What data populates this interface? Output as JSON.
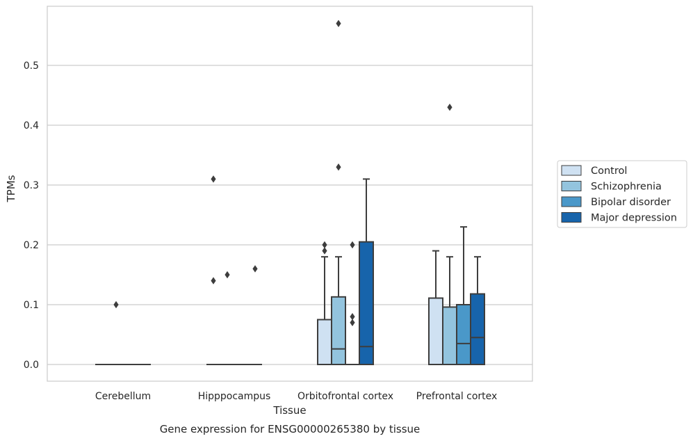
{
  "chart_data": {
    "type": "box",
    "xlabel": "Tissue",
    "ylabel": "TPMs",
    "caption": "Gene expression for ENSG00000265380 by tissue",
    "ylim": [
      -0.028,
      0.6
    ],
    "yticks": [
      "0.0",
      "0.1",
      "0.2",
      "0.3",
      "0.4",
      "0.5"
    ],
    "yticks_values": [
      0.0,
      0.1,
      0.2,
      0.3,
      0.4,
      0.5
    ],
    "grid": "horizontal",
    "legend_position": "right",
    "categories": [
      "Cerebellum",
      "Hipppocampus",
      "Orbitofrontal cortex",
      "Prefrontal cortex"
    ],
    "series": [
      {
        "name": "Control",
        "color": "#cfe1f2",
        "boxes": [
          {
            "q1": 0,
            "median": 0,
            "q3": 0,
            "whisker_low": 0,
            "whisker_high": 0,
            "outliers": []
          },
          {
            "q1": 0,
            "median": 0,
            "q3": 0,
            "whisker_low": 0,
            "whisker_high": 0,
            "outliers": [
              0.31,
              0.14
            ]
          },
          {
            "q1": 0,
            "median": 0,
            "q3": 0.075,
            "whisker_low": 0,
            "whisker_high": 0.18,
            "outliers": [
              0.2,
              0.19
            ]
          },
          {
            "q1": 0,
            "median": 0,
            "q3": 0.111,
            "whisker_low": 0,
            "whisker_high": 0.19,
            "outliers": []
          }
        ]
      },
      {
        "name": "Schizophrenia",
        "color": "#93c4de",
        "boxes": [
          {
            "q1": 0,
            "median": 0,
            "q3": 0,
            "whisker_low": 0,
            "whisker_high": 0,
            "outliers": [
              0.1
            ]
          },
          {
            "q1": 0,
            "median": 0,
            "q3": 0,
            "whisker_low": 0,
            "whisker_high": 0,
            "outliers": [
              0.15
            ]
          },
          {
            "q1": 0,
            "median": 0.026,
            "q3": 0.113,
            "whisker_low": 0,
            "whisker_high": 0.18,
            "outliers": [
              0.57,
              0.33
            ]
          },
          {
            "q1": 0,
            "median": 0,
            "q3": 0.096,
            "whisker_low": 0,
            "whisker_high": 0.18,
            "outliers": [
              0.43
            ]
          }
        ]
      },
      {
        "name": "Bipolar disorder",
        "color": "#4a98c9",
        "boxes": [
          {
            "q1": 0,
            "median": 0,
            "q3": 0,
            "whisker_low": 0,
            "whisker_high": 0,
            "outliers": []
          },
          {
            "q1": 0,
            "median": 0,
            "q3": 0,
            "whisker_low": 0,
            "whisker_high": 0,
            "outliers": []
          },
          {
            "q1": 0,
            "median": 0,
            "q3": 0,
            "whisker_low": 0,
            "whisker_high": 0,
            "outliers": [
              0.2,
              0.08,
              0.07
            ]
          },
          {
            "q1": 0,
            "median": 0.035,
            "q3": 0.1,
            "whisker_low": 0,
            "whisker_high": 0.23,
            "outliers": []
          }
        ]
      },
      {
        "name": "Major depression",
        "color": "#1764ab",
        "boxes": [
          {
            "q1": 0,
            "median": 0,
            "q3": 0,
            "whisker_low": 0,
            "whisker_high": 0,
            "outliers": []
          },
          {
            "q1": 0,
            "median": 0,
            "q3": 0,
            "whisker_low": 0,
            "whisker_high": 0,
            "outliers": [
              0.16
            ]
          },
          {
            "q1": 0,
            "median": 0.03,
            "q3": 0.205,
            "whisker_low": 0,
            "whisker_high": 0.31,
            "outliers": []
          },
          {
            "q1": 0,
            "median": 0.045,
            "q3": 0.118,
            "whisker_low": 0,
            "whisker_high": 0.18,
            "outliers": []
          }
        ]
      }
    ]
  }
}
